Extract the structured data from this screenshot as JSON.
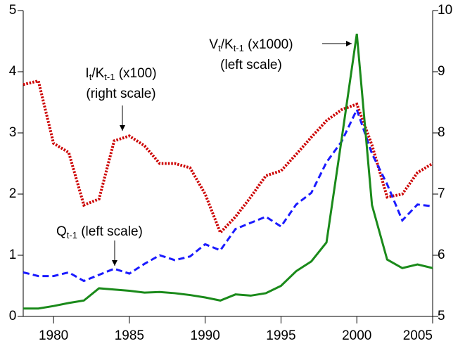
{
  "chart_data": {
    "type": "line",
    "x": [
      1978,
      1979,
      1980,
      1981,
      1982,
      1983,
      1984,
      1985,
      1986,
      1987,
      1988,
      1989,
      1990,
      1991,
      1992,
      1993,
      1994,
      1995,
      1996,
      1997,
      1998,
      1999,
      2000,
      2001,
      2002,
      2003,
      2004,
      2005
    ],
    "xlim": [
      1978,
      2005
    ],
    "xticks": [
      1980,
      1985,
      1990,
      1995,
      2000,
      2005
    ],
    "ylim": [
      0,
      5
    ],
    "yticks": [
      0,
      1,
      2,
      3,
      4,
      5
    ],
    "y2lim": [
      5,
      10
    ],
    "y2ticks": [
      5,
      6,
      7,
      8,
      9,
      10
    ],
    "series": [
      {
        "color": "#cc0000",
        "style": "dotted",
        "axis": "y2",
        "values": [
          8.79,
          8.85,
          7.83,
          7.68,
          6.82,
          6.92,
          7.87,
          7.95,
          7.79,
          7.5,
          7.5,
          7.43,
          7.0,
          6.37,
          6.63,
          6.95,
          7.3,
          7.38,
          7.65,
          7.93,
          8.2,
          8.38,
          8.47,
          7.8,
          6.95,
          7.0,
          7.35,
          7.5
        ]
      },
      {
        "color": "#1a1aff",
        "style": "dashed",
        "values": [
          0.72,
          0.66,
          0.66,
          0.72,
          0.58,
          0.68,
          0.78,
          0.7,
          0.86,
          1.0,
          0.92,
          0.98,
          1.18,
          1.08,
          1.43,
          1.53,
          1.63,
          1.47,
          1.83,
          2.02,
          2.52,
          2.86,
          3.38,
          2.66,
          2.16,
          1.57,
          1.83,
          1.8
        ]
      },
      {
        "color": "#1a8a1a",
        "style": "solid",
        "values": [
          0.13,
          0.13,
          0.17,
          0.22,
          0.26,
          0.46,
          0.44,
          0.42,
          0.39,
          0.4,
          0.38,
          0.35,
          0.31,
          0.26,
          0.36,
          0.34,
          0.38,
          0.5,
          0.74,
          0.9,
          1.21,
          2.9,
          4.62,
          1.82,
          0.93,
          0.79,
          0.85,
          0.79
        ]
      }
    ],
    "annotations": [
      {
        "text": [
          "I",
          "t",
          "/K",
          "t-1",
          " (x100)"
        ],
        "note": "(right scale)"
      },
      {
        "text": [
          "V",
          "t",
          "/K",
          "t-1",
          " (x1000)"
        ],
        "note": "(left scale)"
      },
      {
        "text": [
          "Q",
          "t-1",
          " (left scale)"
        ]
      }
    ]
  }
}
